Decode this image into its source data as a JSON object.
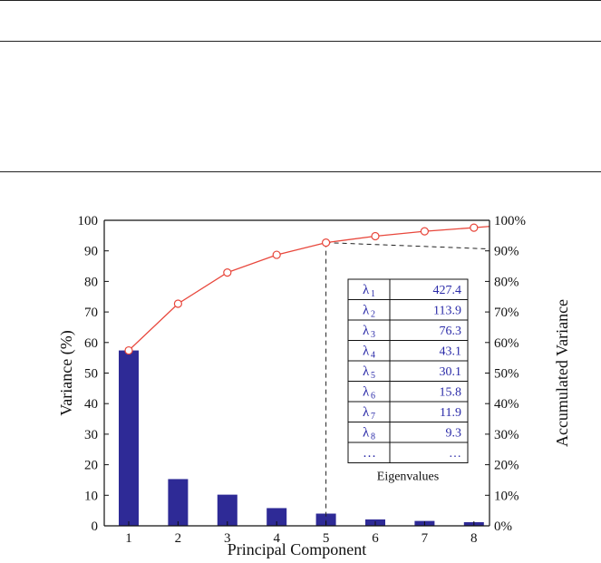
{
  "chart_data": {
    "type": "bar",
    "xlabel": "Principal Component",
    "ylabel": "Variance (%)",
    "y2label": "Accumulated Variance",
    "categories": [
      "1",
      "2",
      "3",
      "4",
      "5",
      "6",
      "7",
      "8"
    ],
    "ylim": [
      0,
      100
    ],
    "y2lim": [
      0,
      100
    ],
    "yticks": [
      "0",
      "10",
      "20",
      "30",
      "40",
      "50",
      "60",
      "70",
      "80",
      "90",
      "100"
    ],
    "y2ticks": [
      "0%",
      "10%",
      "20%",
      "30%",
      "40%",
      "50%",
      "60%",
      "70%",
      "80%",
      "90%",
      "100%"
    ],
    "series": [
      {
        "type": "bar",
        "values": [
          57.4,
          15.3,
          10.2,
          5.8,
          4.0,
          2.1,
          1.6,
          1.2
        ]
      },
      {
        "type": "line",
        "axis": "right",
        "values": [
          57.4,
          72.7,
          82.9,
          88.7,
          92.7,
          94.8,
          96.4,
          97.6
        ]
      }
    ],
    "marker_reference": {
      "component": "5",
      "accumulated": 92.7
    },
    "eigenvalues": {
      "caption": "Eigenvalues",
      "rows": [
        {
          "symbol": "λ",
          "sub": "1",
          "value": "427.4"
        },
        {
          "symbol": "λ",
          "sub": "2",
          "value": "113.9"
        },
        {
          "symbol": "λ",
          "sub": "3",
          "value": "76.3"
        },
        {
          "symbol": "λ",
          "sub": "4",
          "value": "43.1"
        },
        {
          "symbol": "λ",
          "sub": "5",
          "value": "30.1"
        },
        {
          "symbol": "λ",
          "sub": "6",
          "value": "15.8"
        },
        {
          "symbol": "λ",
          "sub": "7",
          "value": "11.9"
        },
        {
          "symbol": "λ",
          "sub": "8",
          "value": "9.3"
        },
        {
          "symbol": "…",
          "sub": "",
          "value": "…"
        }
      ]
    },
    "colors": {
      "bar": "#2e2a96",
      "line": "#e8473c",
      "dashed": "#222222",
      "table_text": "#2a2aa8"
    }
  }
}
